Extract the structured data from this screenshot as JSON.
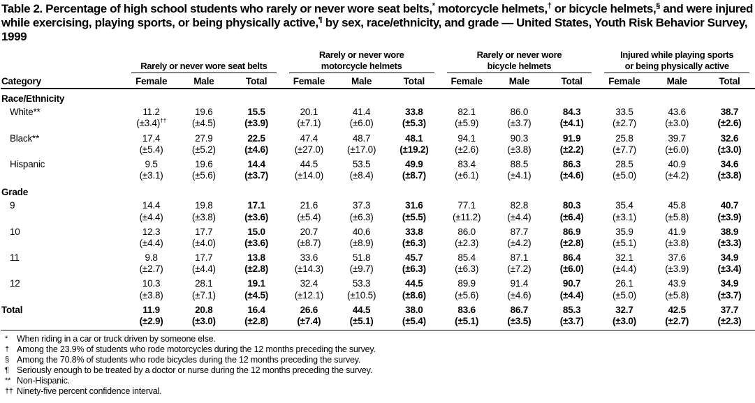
{
  "title_segments": [
    {
      "text": "Table 2. Percentage of high school students who rarely or never wore seat belts,"
    },
    {
      "text": "*",
      "sup": true
    },
    {
      "text": " motorcycle helmets,"
    },
    {
      "text": "†",
      "sup": true
    },
    {
      "text": " or bicycle helmets,"
    },
    {
      "text": "§",
      "sup": true
    },
    {
      "text": " and were injured while exercising, playing sports, or being physically active,"
    },
    {
      "text": "¶",
      "sup": true
    },
    {
      "text": " by sex, race/ethnicity, and grade — United States, Youth Risk Behavior Survey, 1999"
    }
  ],
  "table": {
    "category_header": "Category",
    "sub_headers": [
      "Female",
      "Male",
      "Total"
    ],
    "group_headers": [
      "Rarely or never wore seat belts",
      "Rarely or never wore\nmotorcycle helmets",
      "Rarely or never wore\nbicycle helmets",
      "Injured while playing sports\nor being physically active"
    ],
    "rows": [
      {
        "type": "section",
        "label": "Race/Ethnicity"
      },
      {
        "type": "data",
        "label": "White**",
        "values": [
          "11.2",
          "19.6",
          "15.5",
          "20.1",
          "41.4",
          "33.8",
          "82.1",
          "86.0",
          "84.3",
          "33.5",
          "43.6",
          "38.7"
        ],
        "ci": [
          "(±3.4)††",
          "(±4.5)",
          "(±3.9)",
          "(±7.1)",
          "(±6.0)",
          "(±5.3)",
          "(±5.9)",
          "(±3.7)",
          "(±4.1)",
          "(±2.7)",
          "(±3.0)",
          "(±2.6)"
        ]
      },
      {
        "type": "data",
        "label": "Black**",
        "values": [
          "17.4",
          "27.9",
          "22.5",
          "47.4",
          "48.7",
          "48.1",
          "94.1",
          "90.3",
          "91.9",
          "25.8",
          "39.7",
          "32.6"
        ],
        "ci": [
          "(±5.4)",
          "(±5.2)",
          "(±4.6)",
          "(±27.0)",
          "(±17.0)",
          "(±19.2)",
          "(±2.6)",
          "(±3.8)",
          "(±2.2)",
          "(±7.7)",
          "(±6.0)",
          "(±3.0)"
        ]
      },
      {
        "type": "data",
        "label": "Hispanic",
        "values": [
          "9.5",
          "19.6",
          "14.4",
          "44.5",
          "53.5",
          "49.9",
          "83.4",
          "88.5",
          "86.3",
          "28.5",
          "40.9",
          "34.6"
        ],
        "ci": [
          "(±3.1)",
          "(±5.6)",
          "(±3.7)",
          "(±14.0)",
          "(±8.4)",
          "(±8.7)",
          "(±6.1)",
          "(±4.1)",
          "(±4.6)",
          "(±5.0)",
          "(±4.2)",
          "(±3.8)"
        ]
      },
      {
        "type": "section",
        "label": "Grade"
      },
      {
        "type": "data",
        "label": "9",
        "values": [
          "14.4",
          "19.8",
          "17.1",
          "21.6",
          "37.3",
          "31.6",
          "77.1",
          "82.8",
          "80.3",
          "35.4",
          "45.8",
          "40.7"
        ],
        "ci": [
          "(±4.4)",
          "(±3.8)",
          "(±3.6)",
          "(±5.4)",
          "(±6.3)",
          "(±5.5)",
          "(±11.2)",
          "(±4.4)",
          "(±6.4)",
          "(±3.1)",
          "(±5.8)",
          "(±3.9)"
        ]
      },
      {
        "type": "data",
        "label": "10",
        "values": [
          "12.3",
          "17.7",
          "15.0",
          "20.7",
          "40.6",
          "33.8",
          "86.0",
          "87.7",
          "86.9",
          "35.9",
          "41.9",
          "38.9"
        ],
        "ci": [
          "(±4.4)",
          "(±4.0)",
          "(±3.6)",
          "(±8.7)",
          "(±8.9)",
          "(±6.3)",
          "(±2.3)",
          "(±4.2)",
          "(±2.8)",
          "(±5.1)",
          "(±3.8)",
          "(±3.3)"
        ]
      },
      {
        "type": "data",
        "label": "11",
        "values": [
          "9.8",
          "17.7",
          "13.8",
          "33.6",
          "51.8",
          "45.7",
          "85.4",
          "87.1",
          "86.4",
          "32.1",
          "37.6",
          "34.9"
        ],
        "ci": [
          "(±2.7)",
          "(±4.4)",
          "(±2.8)",
          "(±14.3)",
          "(±9.7)",
          "(±6.3)",
          "(±6.3)",
          "(±7.2)",
          "(±6.0)",
          "(±4.4)",
          "(±3.9)",
          "(±3.4)"
        ]
      },
      {
        "type": "data",
        "label": "12",
        "values": [
          "10.3",
          "28.1",
          "19.1",
          "32.4",
          "53.3",
          "44.5",
          "89.9",
          "91.4",
          "90.7",
          "26.1",
          "43.9",
          "34.9"
        ],
        "ci": [
          "(±3.8)",
          "(±7.1)",
          "(±4.5)",
          "(±12.1)",
          "(±10.5)",
          "(±8.6)",
          "(±5.6)",
          "(±4.6)",
          "(±4.4)",
          "(±5.0)",
          "(±5.8)",
          "(±3.7)"
        ]
      },
      {
        "type": "total",
        "label": "Total",
        "values": [
          "11.9",
          "20.8",
          "16.4",
          "26.6",
          "44.5",
          "38.0",
          "83.6",
          "86.7",
          "85.3",
          "32.7",
          "42.5",
          "37.7"
        ],
        "ci": [
          "(±2.9)",
          "(±3.0)",
          "(±2.8)",
          "(±7.4)",
          "(±5.1)",
          "(±5.4)",
          "(±5.1)",
          "(±3.5)",
          "(±3.7)",
          "(±3.0)",
          "(±2.7)",
          "(±2.3)"
        ]
      }
    ]
  },
  "footnotes": [
    {
      "marker": "*",
      "text": "When riding in a car or truck driven by someone else."
    },
    {
      "marker": "†",
      "text": "Among the 23.9% of students who rode motorcycles during the 12 months preceding the survey."
    },
    {
      "marker": "§",
      "text": "Among the 70.8% of students who rode bicycles during the 12 months preceding the survey."
    },
    {
      "marker": "¶",
      "text": "Seriously enough to be treated by a doctor or nurse during the 12 months preceding the survey."
    },
    {
      "marker": "**",
      "text": "Non-Hispanic."
    },
    {
      "marker": "††",
      "text": "Ninety-five percent confidence interval."
    }
  ]
}
